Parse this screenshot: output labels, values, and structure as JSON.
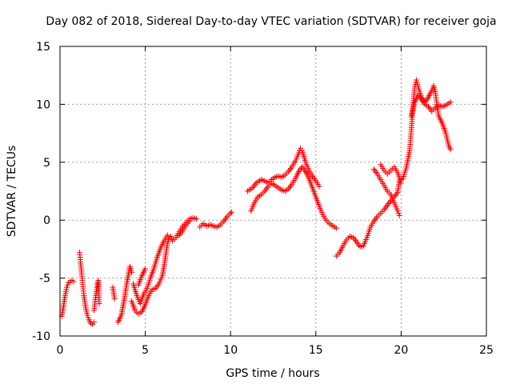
{
  "chart_data": {
    "type": "scatter",
    "title": "Day 082 of 2018, Sidereal Day-to-day VTEC variation (SDTVAR) for receiver goja",
    "xlabel": "GPS time / hours",
    "ylabel": "SDTVAR / TECUs",
    "xlim": [
      0,
      25
    ],
    "ylim": [
      -10,
      15
    ],
    "xticks": [
      0,
      5,
      10,
      15,
      20,
      25
    ],
    "yticks": [
      -10,
      -5,
      0,
      5,
      10,
      15
    ],
    "grid": true,
    "marker": "+",
    "color": "#ff0000",
    "series": [
      {
        "name": "SDTVAR",
        "segments": [
          [
            [
              0.1,
              -8.3
            ],
            [
              0.2,
              -7.5
            ],
            [
              0.3,
              -6.5
            ],
            [
              0.4,
              -5.8
            ],
            [
              0.5,
              -5.4
            ],
            [
              0.6,
              -5.3
            ],
            [
              0.7,
              -5.2
            ],
            [
              0.8,
              -5.3
            ]
          ],
          [
            [
              1.15,
              -2.8
            ],
            [
              1.2,
              -3.6
            ],
            [
              1.3,
              -5.0
            ],
            [
              1.4,
              -6.5
            ],
            [
              1.5,
              -7.5
            ],
            [
              1.6,
              -8.2
            ],
            [
              1.7,
              -8.6
            ],
            [
              1.8,
              -8.9
            ],
            [
              1.9,
              -9.0
            ],
            [
              2.0,
              -8.8
            ]
          ],
          [
            [
              2.0,
              -7.8
            ],
            [
              2.1,
              -6.5
            ],
            [
              2.2,
              -5.5
            ],
            [
              2.25,
              -5.2
            ],
            [
              2.3,
              -7.2
            ]
          ],
          [
            [
              3.1,
              -5.8
            ],
            [
              3.2,
              -6.8
            ]
          ],
          [
            [
              3.4,
              -8.8
            ],
            [
              3.6,
              -8.2
            ],
            [
              3.7,
              -7.4
            ],
            [
              3.8,
              -6.6
            ],
            [
              3.9,
              -5.6
            ],
            [
              4.0,
              -4.8
            ],
            [
              4.1,
              -4.0
            ],
            [
              4.2,
              -4.5
            ]
          ],
          [
            [
              4.2,
              -7.0
            ],
            [
              4.4,
              -7.8
            ],
            [
              4.6,
              -8.1
            ],
            [
              4.8,
              -7.9
            ],
            [
              5.0,
              -7.3
            ],
            [
              5.2,
              -6.5
            ],
            [
              5.4,
              -6.0
            ],
            [
              5.6,
              -5.9
            ],
            [
              5.8,
              -5.5
            ],
            [
              6.0,
              -4.8
            ],
            [
              6.1,
              -4.0
            ],
            [
              6.2,
              -3.0
            ],
            [
              6.3,
              -2.0
            ],
            [
              6.4,
              -1.5
            ],
            [
              6.5,
              -1.4
            ],
            [
              6.6,
              -1.8
            ],
            [
              6.8,
              -1.5
            ],
            [
              7.0,
              -1.0
            ],
            [
              7.2,
              -0.5
            ],
            [
              7.4,
              -0.2
            ],
            [
              7.6,
              0.1
            ],
            [
              7.8,
              0.2
            ],
            [
              8.0,
              0.1
            ]
          ],
          [
            [
              4.3,
              -5.5
            ],
            [
              4.5,
              -6.5
            ],
            [
              4.7,
              -7.2
            ],
            [
              4.9,
              -6.4
            ],
            [
              5.1,
              -5.9
            ],
            [
              5.3,
              -5.0
            ],
            [
              5.5,
              -4.2
            ],
            [
              5.7,
              -3.2
            ],
            [
              5.9,
              -2.4
            ],
            [
              6.1,
              -1.8
            ],
            [
              6.3,
              -1.3
            ]
          ],
          [
            [
              4.6,
              -5.6
            ],
            [
              4.8,
              -4.8
            ],
            [
              5.0,
              -4.2
            ]
          ],
          [
            [
              7.0,
              -1.3
            ],
            [
              7.2,
              -0.9
            ],
            [
              7.4,
              -0.4
            ],
            [
              7.6,
              -0.1
            ]
          ],
          [
            [
              8.2,
              -0.6
            ],
            [
              8.4,
              -0.3
            ],
            [
              8.6,
              -0.5
            ],
            [
              8.8,
              -0.4
            ],
            [
              9.0,
              -0.5
            ],
            [
              9.2,
              -0.6
            ],
            [
              9.4,
              -0.4
            ],
            [
              9.6,
              -0.1
            ],
            [
              9.8,
              0.3
            ],
            [
              10.0,
              0.6
            ],
            [
              10.05,
              0.7
            ]
          ],
          [
            [
              11.0,
              2.5
            ],
            [
              11.3,
              2.8
            ],
            [
              11.5,
              3.2
            ],
            [
              11.8,
              3.5
            ],
            [
              12.0,
              3.4
            ],
            [
              12.2,
              3.2
            ],
            [
              12.4,
              3.5
            ],
            [
              12.6,
              3.7
            ],
            [
              12.8,
              3.8
            ],
            [
              13.0,
              3.7
            ],
            [
              13.2,
              3.9
            ],
            [
              13.4,
              4.2
            ],
            [
              13.6,
              4.6
            ],
            [
              13.8,
              5.1
            ],
            [
              14.0,
              5.8
            ],
            [
              14.1,
              6.2
            ],
            [
              14.2,
              6.0
            ],
            [
              14.4,
              5.0
            ],
            [
              14.6,
              4.3
            ],
            [
              14.8,
              3.8
            ],
            [
              15.0,
              3.4
            ],
            [
              15.2,
              2.9
            ]
          ],
          [
            [
              11.2,
              0.8
            ],
            [
              11.4,
              1.5
            ],
            [
              11.6,
              2.0
            ],
            [
              11.8,
              2.2
            ],
            [
              12.0,
              2.5
            ],
            [
              12.2,
              2.9
            ],
            [
              12.4,
              3.2
            ],
            [
              12.6,
              3.0
            ],
            [
              12.8,
              2.8
            ],
            [
              13.0,
              2.6
            ],
            [
              13.2,
              2.5
            ],
            [
              13.4,
              2.7
            ],
            [
              13.6,
              3.1
            ],
            [
              13.8,
              3.6
            ],
            [
              14.0,
              4.2
            ],
            [
              14.2,
              4.6
            ],
            [
              14.4,
              4.2
            ],
            [
              14.6,
              3.6
            ],
            [
              14.8,
              2.8
            ],
            [
              15.0,
              2.0
            ],
            [
              15.2,
              1.2
            ],
            [
              15.4,
              0.5
            ],
            [
              15.6,
              0.0
            ],
            [
              15.8,
              -0.3
            ],
            [
              16.0,
              -0.5
            ],
            [
              16.2,
              -0.7
            ]
          ],
          [
            [
              16.2,
              -3.1
            ],
            [
              16.4,
              -2.8
            ],
            [
              16.6,
              -2.2
            ],
            [
              16.8,
              -1.7
            ],
            [
              17.0,
              -1.4
            ],
            [
              17.2,
              -1.5
            ],
            [
              17.4,
              -1.9
            ],
            [
              17.6,
              -2.3
            ],
            [
              17.8,
              -2.2
            ],
            [
              18.0,
              -1.5
            ],
            [
              18.2,
              -0.6
            ],
            [
              18.4,
              -0.1
            ],
            [
              18.6,
              0.3
            ],
            [
              18.8,
              0.6
            ],
            [
              19.0,
              0.9
            ],
            [
              19.2,
              1.3
            ],
            [
              19.4,
              1.7
            ],
            [
              19.6,
              2.0
            ],
            [
              19.8,
              2.4
            ],
            [
              19.9,
              3.4
            ],
            [
              20.1,
              3.6
            ],
            [
              20.3,
              4.5
            ],
            [
              20.5,
              6.0
            ],
            [
              20.6,
              7.8
            ],
            [
              20.7,
              9.8
            ],
            [
              20.8,
              11.5
            ],
            [
              20.9,
              12.1
            ],
            [
              21.0,
              11.5
            ],
            [
              21.2,
              10.6
            ],
            [
              21.4,
              10.2
            ],
            [
              21.6,
              10.6
            ],
            [
              21.8,
              11.2
            ],
            [
              21.9,
              11.6
            ],
            [
              22.0,
              11.1
            ],
            [
              22.1,
              10.0
            ],
            [
              22.2,
              9.0
            ],
            [
              22.4,
              8.4
            ],
            [
              22.6,
              7.6
            ],
            [
              22.8,
              6.4
            ],
            [
              22.9,
              6.1
            ]
          ],
          [
            [
              18.4,
              4.4
            ],
            [
              18.6,
              4.0
            ],
            [
              18.8,
              3.5
            ],
            [
              19.0,
              3.0
            ],
            [
              19.2,
              2.5
            ],
            [
              19.4,
              2.2
            ],
            [
              19.6,
              1.5
            ],
            [
              19.8,
              0.8
            ],
            [
              19.9,
              0.4
            ]
          ],
          [
            [
              18.8,
              4.8
            ],
            [
              19.0,
              4.3
            ],
            [
              19.2,
              4.0
            ],
            [
              19.4,
              4.3
            ],
            [
              19.6,
              4.6
            ],
            [
              19.8,
              4.1
            ],
            [
              20.0,
              3.2
            ]
          ],
          [
            [
              20.6,
              9.0
            ],
            [
              20.8,
              10.2
            ],
            [
              21.0,
              10.8
            ],
            [
              21.2,
              10.4
            ],
            [
              21.4,
              10.0
            ],
            [
              21.6,
              9.8
            ],
            [
              21.8,
              9.4
            ],
            [
              22.0,
              9.7
            ],
            [
              22.2,
              9.9
            ],
            [
              22.4,
              9.8
            ],
            [
              22.6,
              9.9
            ],
            [
              22.8,
              10.1
            ],
            [
              22.9,
              10.2
            ]
          ]
        ]
      }
    ]
  }
}
